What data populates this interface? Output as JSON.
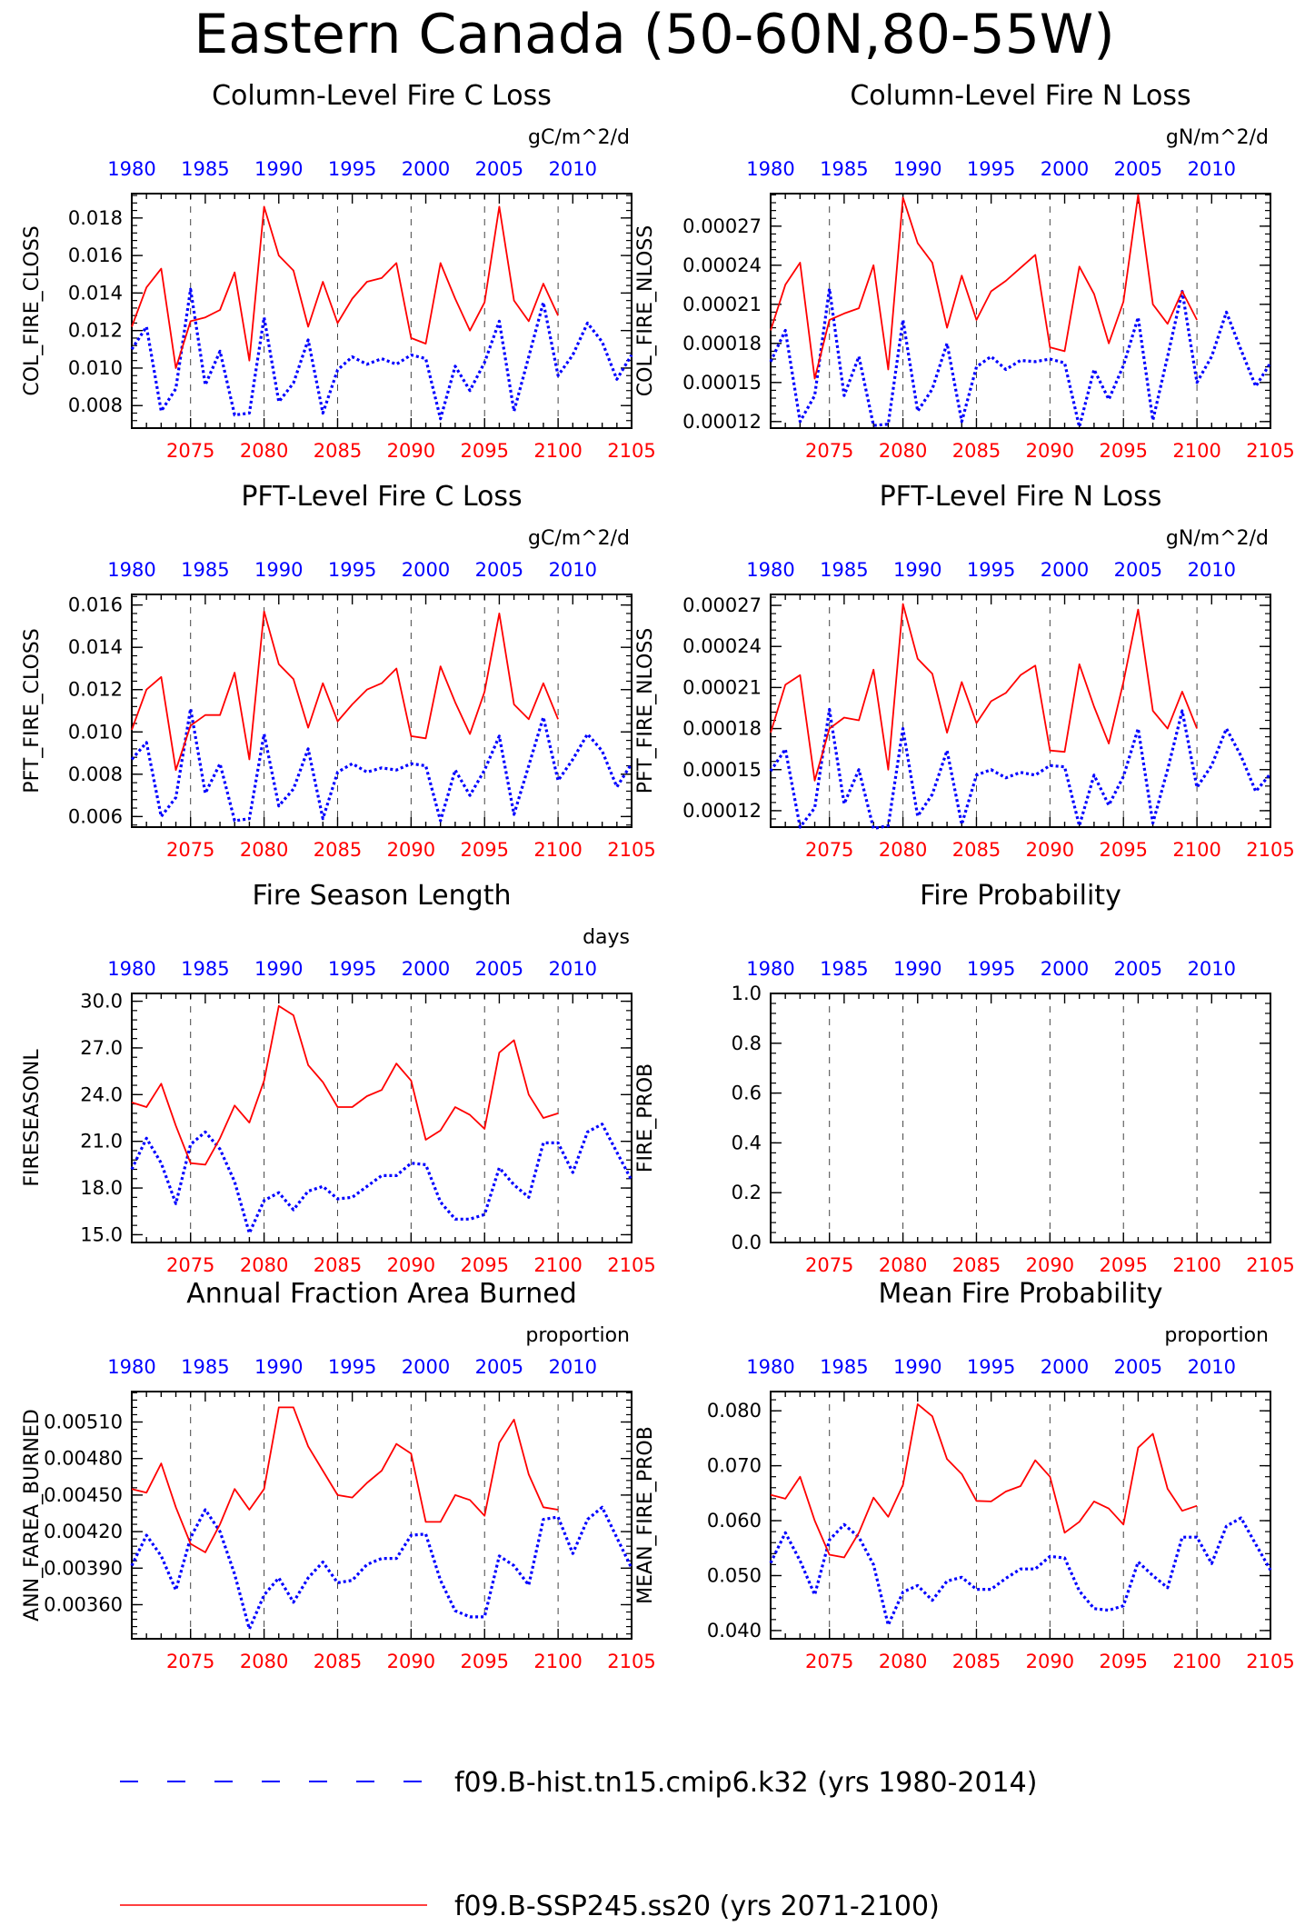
{
  "page": {
    "title": "Eastern Canada (50-60N,80-55W)"
  },
  "legend": {
    "hist_label": "f09.B-hist.tn15.cmip6.k32 (yrs 1980-2014)",
    "ssp_label": "f09.B-SSP245.ss20 (yrs 2071-2100)"
  },
  "colors": {
    "hist": "#0000ff",
    "ssp": "#ff0000",
    "axis": "#000000",
    "grid": "#444444"
  },
  "axes": {
    "top_year_ticks": [
      "1980",
      "1985",
      "1990",
      "1995",
      "2000",
      "2005",
      "2010"
    ],
    "bottom_year_ticks": [
      "2075",
      "2080",
      "2085",
      "2090",
      "2095",
      "2100",
      "2105"
    ]
  },
  "chart_data": [
    {
      "type": "line",
      "title": "Column-Level Fire C Loss",
      "units": "gC/m^2/d",
      "ylabel": "COL_FIRE_CLOSS",
      "x_bottom": [
        2071,
        2105
      ],
      "x_top": [
        1980,
        2014
      ],
      "ylim": [
        0.0068,
        0.0193
      ],
      "yticks": [
        "0.008",
        "0.010",
        "0.012",
        "0.014",
        "0.016",
        "0.018"
      ],
      "series": [
        {
          "name": "f09.B-hist.tn15.cmip6.k32 (yrs 1980-2014)",
          "x_start": 1980,
          "values": [
            0.011,
            0.0122,
            0.0077,
            0.0089,
            0.0142,
            0.0091,
            0.0109,
            0.0075,
            0.0076,
            0.0127,
            0.0082,
            0.0092,
            0.0115,
            0.0076,
            0.0099,
            0.0106,
            0.0102,
            0.0105,
            0.0102,
            0.0107,
            0.0105,
            0.0073,
            0.0101,
            0.0088,
            0.0103,
            0.0125,
            0.0077,
            0.0106,
            0.0135,
            0.0096,
            0.0107,
            0.0124,
            0.0114,
            0.0094,
            0.0107
          ]
        },
        {
          "name": "f09.B-SSP245.ss20 (yrs 2071-2100)",
          "x_start": 2071,
          "values": [
            0.0122,
            0.0143,
            0.0153,
            0.01,
            0.0125,
            0.0127,
            0.0131,
            0.0151,
            0.0104,
            0.0186,
            0.016,
            0.0152,
            0.0122,
            0.0146,
            0.0124,
            0.0137,
            0.0146,
            0.0148,
            0.0156,
            0.0116,
            0.0113,
            0.0156,
            0.0137,
            0.012,
            0.0135,
            0.0186,
            0.0136,
            0.0125,
            0.0145,
            0.0128
          ]
        }
      ]
    },
    {
      "type": "line",
      "title": "Column-Level Fire N Loss",
      "units": "gN/m^2/d",
      "ylabel": "COL_FIRE_NLOSS",
      "x_bottom": [
        2071,
        2105
      ],
      "x_top": [
        1980,
        2014
      ],
      "ylim": [
        0.000115,
        0.000295
      ],
      "yticks": [
        "0.00012",
        "0.00015",
        "0.00018",
        "0.00021",
        "0.00024",
        "0.00027"
      ],
      "series": [
        {
          "name": "f09.B-hist.tn15.cmip6.k32 (yrs 1980-2014)",
          "x_start": 1980,
          "values": [
            0.000166,
            0.00019,
            0.00012,
            0.00014,
            0.000222,
            0.00014,
            0.00017,
            0.000117,
            0.000118,
            0.000198,
            0.000128,
            0.000145,
            0.00018,
            0.00012,
            0.000162,
            0.00017,
            0.00016,
            0.000167,
            0.000166,
            0.000168,
            0.000165,
            0.000116,
            0.00016,
            0.000137,
            0.000163,
            0.0002,
            0.000121,
            0.00017,
            0.00022,
            0.00015,
            0.00017,
            0.000204,
            0.000175,
            0.000147,
            0.000165
          ]
        },
        {
          "name": "f09.B-SSP245.ss20 (yrs 2071-2100)",
          "x_start": 2071,
          "values": [
            0.00019,
            0.000225,
            0.000242,
            0.000153,
            0.000198,
            0.000203,
            0.000207,
            0.00024,
            0.00016,
            0.000292,
            0.000257,
            0.000242,
            0.000192,
            0.000232,
            0.000198,
            0.00022,
            0.000228,
            0.000238,
            0.000248,
            0.000177,
            0.000174,
            0.000239,
            0.000218,
            0.00018,
            0.000212,
            0.000294,
            0.00021,
            0.000195,
            0.00022,
            0.000198
          ]
        }
      ]
    },
    {
      "type": "line",
      "title": "PFT-Level Fire C Loss",
      "units": "gC/m^2/d",
      "ylabel": "PFT_FIRE_CLOSS",
      "x_bottom": [
        2071,
        2105
      ],
      "x_top": [
        1980,
        2014
      ],
      "ylim": [
        0.0055,
        0.0165
      ],
      "yticks": [
        "0.006",
        "0.008",
        "0.010",
        "0.012",
        "0.014",
        "0.016"
      ],
      "series": [
        {
          "name": "f09.B-hist.tn15.cmip6.k32 (yrs 1980-2014)",
          "x_start": 1980,
          "values": [
            0.0087,
            0.0095,
            0.006,
            0.0069,
            0.0111,
            0.0071,
            0.0085,
            0.0058,
            0.0059,
            0.0099,
            0.0065,
            0.0073,
            0.0092,
            0.0059,
            0.0081,
            0.0085,
            0.0081,
            0.0083,
            0.0082,
            0.0085,
            0.0084,
            0.0058,
            0.0082,
            0.007,
            0.0082,
            0.0098,
            0.0061,
            0.0084,
            0.0107,
            0.0077,
            0.0087,
            0.0099,
            0.0091,
            0.0074,
            0.0085
          ]
        },
        {
          "name": "f09.B-SSP245.ss20 (yrs 2071-2100)",
          "x_start": 2071,
          "values": [
            0.0101,
            0.012,
            0.0126,
            0.0082,
            0.0103,
            0.0108,
            0.0108,
            0.0128,
            0.0087,
            0.0157,
            0.0132,
            0.0125,
            0.0102,
            0.0123,
            0.0105,
            0.0113,
            0.012,
            0.0123,
            0.013,
            0.0098,
            0.0097,
            0.0131,
            0.0114,
            0.0099,
            0.0119,
            0.0156,
            0.0113,
            0.0106,
            0.0123,
            0.0106
          ]
        }
      ]
    },
    {
      "type": "line",
      "title": "PFT-Level Fire N Loss",
      "units": "gN/m^2/d",
      "ylabel": "PFT_FIRE_NLOSS",
      "x_bottom": [
        2071,
        2105
      ],
      "x_top": [
        1980,
        2014
      ],
      "ylim": [
        0.000108,
        0.000278
      ],
      "yticks": [
        "0.00012",
        "0.00015",
        "0.00018",
        "0.00021",
        "0.00024",
        "0.00027"
      ],
      "series": [
        {
          "name": "f09.B-hist.tn15.cmip6.k32 (yrs 1980-2014)",
          "x_start": 1980,
          "values": [
            0.000149,
            0.000165,
            0.000108,
            0.000122,
            0.000194,
            0.000125,
            0.00015,
            0.000107,
            0.000109,
            0.00018,
            0.000116,
            0.000132,
            0.000164,
            0.00011,
            0.000146,
            0.00015,
            0.000144,
            0.000148,
            0.000146,
            0.000153,
            0.000152,
            0.000109,
            0.000146,
            0.000124,
            0.000145,
            0.00018,
            0.000111,
            0.00015,
            0.000193,
            0.000137,
            0.000153,
            0.00018,
            0.00016,
            0.000134,
            0.000147
          ]
        },
        {
          "name": "f09.B-SSP245.ss20 (yrs 2071-2100)",
          "x_start": 2071,
          "values": [
            0.000177,
            0.000212,
            0.000219,
            0.000142,
            0.00018,
            0.000188,
            0.000186,
            0.000223,
            0.00015,
            0.000271,
            0.000231,
            0.00022,
            0.000177,
            0.000214,
            0.000184,
            0.0002,
            0.000206,
            0.000219,
            0.000226,
            0.000164,
            0.000163,
            0.000227,
            0.000196,
            0.000169,
            0.000214,
            0.000267,
            0.000193,
            0.00018,
            0.000207,
            0.00018
          ]
        }
      ]
    },
    {
      "type": "line",
      "title": "Fire Season Length",
      "units": "days",
      "ylabel": "FIRESEASONL",
      "x_bottom": [
        2071,
        2105
      ],
      "x_top": [
        1980,
        2014
      ],
      "ylim": [
        14.5,
        30.5
      ],
      "yticks": [
        "15.0",
        "18.0",
        "21.0",
        "24.0",
        "27.0",
        "30.0"
      ],
      "series": [
        {
          "name": "f09.B-hist.tn15.cmip6.k32 (yrs 1980-2014)",
          "x_start": 1980,
          "values": [
            19.2,
            21.2,
            19.6,
            17.0,
            20.8,
            21.6,
            20.5,
            18.4,
            15.1,
            17.2,
            17.7,
            16.6,
            17.8,
            18.1,
            17.3,
            17.4,
            18.1,
            18.8,
            18.8,
            19.6,
            19.5,
            17.1,
            16.0,
            16.0,
            16.3,
            19.3,
            18.2,
            17.4,
            20.9,
            20.9,
            19.0,
            21.6,
            22.1,
            20.3,
            18.5
          ]
        },
        {
          "name": "f09.B-SSP245.ss20 (yrs 2071-2100)",
          "x_start": 2071,
          "values": [
            23.5,
            23.2,
            24.7,
            22.0,
            19.6,
            19.5,
            21.2,
            23.3,
            22.2,
            24.9,
            29.7,
            29.1,
            25.9,
            24.8,
            23.2,
            23.2,
            23.9,
            24.3,
            26.0,
            24.9,
            21.1,
            21.7,
            23.2,
            22.7,
            21.8,
            26.7,
            27.5,
            24.0,
            22.5,
            22.8
          ]
        }
      ]
    },
    {
      "type": "line",
      "title": "Fire Probability",
      "units": "",
      "ylabel": "FIRE_PROB",
      "x_bottom": [
        2071,
        2105
      ],
      "x_top": [
        1980,
        2014
      ],
      "ylim": [
        0.0,
        1.0
      ],
      "yticks": [
        "0.0",
        "0.2",
        "0.4",
        "0.6",
        "0.8",
        "1.0"
      ],
      "series": []
    },
    {
      "type": "line",
      "title": "Annual Fraction Area Burned",
      "units": "proportion",
      "ylabel": "ANN_FAREA_BURNED",
      "x_bottom": [
        2071,
        2105
      ],
      "x_top": [
        1980,
        2014
      ],
      "ylim": [
        0.00332,
        0.00535
      ],
      "yticks": [
        "0.00360",
        "0.00390",
        "0.00420",
        "0.00450",
        "0.00480",
        "0.00510"
      ],
      "series": [
        {
          "name": "f09.B-hist.tn15.cmip6.k32 (yrs 1980-2014)",
          "x_start": 1980,
          "values": [
            0.00392,
            0.00417,
            0.004,
            0.00372,
            0.00415,
            0.00438,
            0.0042,
            0.00385,
            0.0034,
            0.00368,
            0.00382,
            0.00362,
            0.00382,
            0.00395,
            0.00378,
            0.0038,
            0.00393,
            0.00398,
            0.00398,
            0.00417,
            0.00418,
            0.0038,
            0.00355,
            0.0035,
            0.0035,
            0.004,
            0.00392,
            0.00376,
            0.0043,
            0.00432,
            0.00402,
            0.0043,
            0.0044,
            0.00415,
            0.0039
          ]
        },
        {
          "name": "f09.B-SSP245.ss20 (yrs 2071-2100)",
          "x_start": 2071,
          "values": [
            0.00455,
            0.00452,
            0.00476,
            0.0044,
            0.0041,
            0.00403,
            0.00426,
            0.00455,
            0.00438,
            0.00455,
            0.00522,
            0.00522,
            0.0049,
            0.0047,
            0.0045,
            0.00448,
            0.0046,
            0.0047,
            0.00492,
            0.00484,
            0.00428,
            0.00428,
            0.0045,
            0.00446,
            0.00433,
            0.00493,
            0.00512,
            0.00467,
            0.0044,
            0.00438
          ]
        }
      ]
    },
    {
      "type": "line",
      "title": "Mean Fire Probability",
      "units": "proportion",
      "ylabel": "MEAN_FIRE_PROB",
      "x_bottom": [
        2071,
        2105
      ],
      "x_top": [
        1980,
        2014
      ],
      "ylim": [
        0.0385,
        0.0835
      ],
      "yticks": [
        "0.040",
        "0.050",
        "0.060",
        "0.070",
        "0.080"
      ],
      "series": [
        {
          "name": "f09.B-hist.tn15.cmip6.k32 (yrs 1980-2014)",
          "x_start": 1980,
          "values": [
            0.0523,
            0.0578,
            0.0527,
            0.0465,
            0.0565,
            0.0593,
            0.057,
            0.052,
            0.041,
            0.047,
            0.0482,
            0.0455,
            0.049,
            0.0497,
            0.0475,
            0.0475,
            0.0495,
            0.0512,
            0.0512,
            0.0535,
            0.0532,
            0.0472,
            0.044,
            0.0437,
            0.0445,
            0.0525,
            0.05,
            0.0478,
            0.057,
            0.057,
            0.0522,
            0.059,
            0.0605,
            0.0557,
            0.051
          ]
        },
        {
          "name": "f09.B-SSP245.ss20 (yrs 2071-2100)",
          "x_start": 2071,
          "values": [
            0.0647,
            0.064,
            0.068,
            0.06,
            0.0538,
            0.0533,
            0.0578,
            0.0642,
            0.0607,
            0.0665,
            0.0812,
            0.079,
            0.0712,
            0.0685,
            0.0636,
            0.0635,
            0.0653,
            0.0663,
            0.071,
            0.068,
            0.0578,
            0.0598,
            0.0635,
            0.0622,
            0.0593,
            0.0733,
            0.0758,
            0.0658,
            0.0618,
            0.0627
          ]
        }
      ]
    }
  ]
}
